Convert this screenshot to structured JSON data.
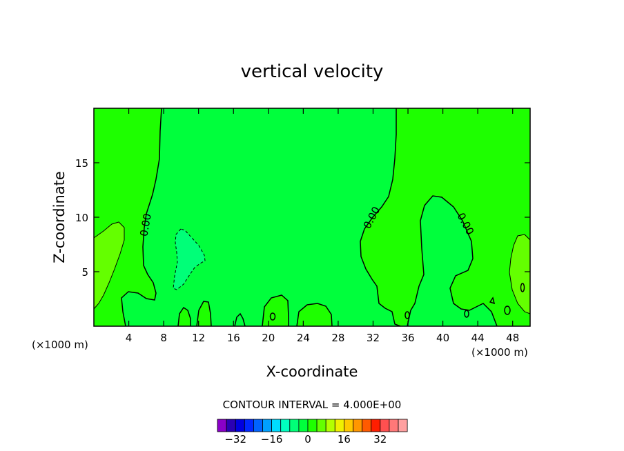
{
  "chart_data": {
    "type": "heatmap",
    "title": "vertical velocity",
    "xlabel": "X-coordinate",
    "ylabel": "Z-coordinate",
    "x_units": "(×1000 m)",
    "xlim": [
      0,
      50
    ],
    "ylim": [
      0,
      20
    ],
    "x_ticks": [
      4,
      8,
      12,
      16,
      20,
      24,
      28,
      32,
      36,
      40,
      44,
      48
    ],
    "y_ticks": [
      5,
      10,
      15
    ],
    "contour_interval_text": "CONTOUR INTERVAL = 4.000E+00",
    "contour_interval": 4.0,
    "zero_contour_label": "0.00",
    "colorbar": {
      "levels": [
        -36,
        -32,
        -28,
        -24,
        -20,
        -16,
        -12,
        -8,
        -4,
        0,
        4,
        8,
        12,
        16,
        20,
        24,
        28,
        32,
        36
      ],
      "tick_labels": [
        -32,
        -16,
        0,
        16,
        32
      ],
      "tick_label_text": [
        "−32",
        "−16",
        "0",
        "16",
        "32"
      ],
      "colors": [
        "#8a00c8",
        "#2a00b4",
        "#0000e0",
        "#0028ff",
        "#0064ff",
        "#00a0ff",
        "#00dcff",
        "#00ffc0",
        "#00ff78",
        "#00ff3c",
        "#1eff00",
        "#64ff00",
        "#b4ff00",
        "#f0f000",
        "#ffc800",
        "#ff9600",
        "#ff5a00",
        "#ff1e00",
        "#ff5050",
        "#ff7878",
        "#ffa0a0"
      ]
    },
    "regions": [
      {
        "name": "background",
        "value_range": [
          -4,
          0
        ],
        "color": "#00ff3c"
      },
      {
        "name": "left-upward-zone",
        "value_range": [
          0,
          4
        ],
        "color": "#1eff00"
      },
      {
        "name": "right-upward-zone",
        "value_range": [
          0,
          4
        ],
        "color": "#1eff00"
      },
      {
        "name": "left-edge-maximum",
        "value_range": [
          4,
          8
        ],
        "color": "#64ff00"
      },
      {
        "name": "right-edge-maximum",
        "value_range": [
          4,
          8
        ],
        "color": "#64ff00"
      },
      {
        "name": "downdraft-center",
        "value_range": [
          -8,
          -4
        ],
        "color": "#00ff78"
      }
    ]
  }
}
